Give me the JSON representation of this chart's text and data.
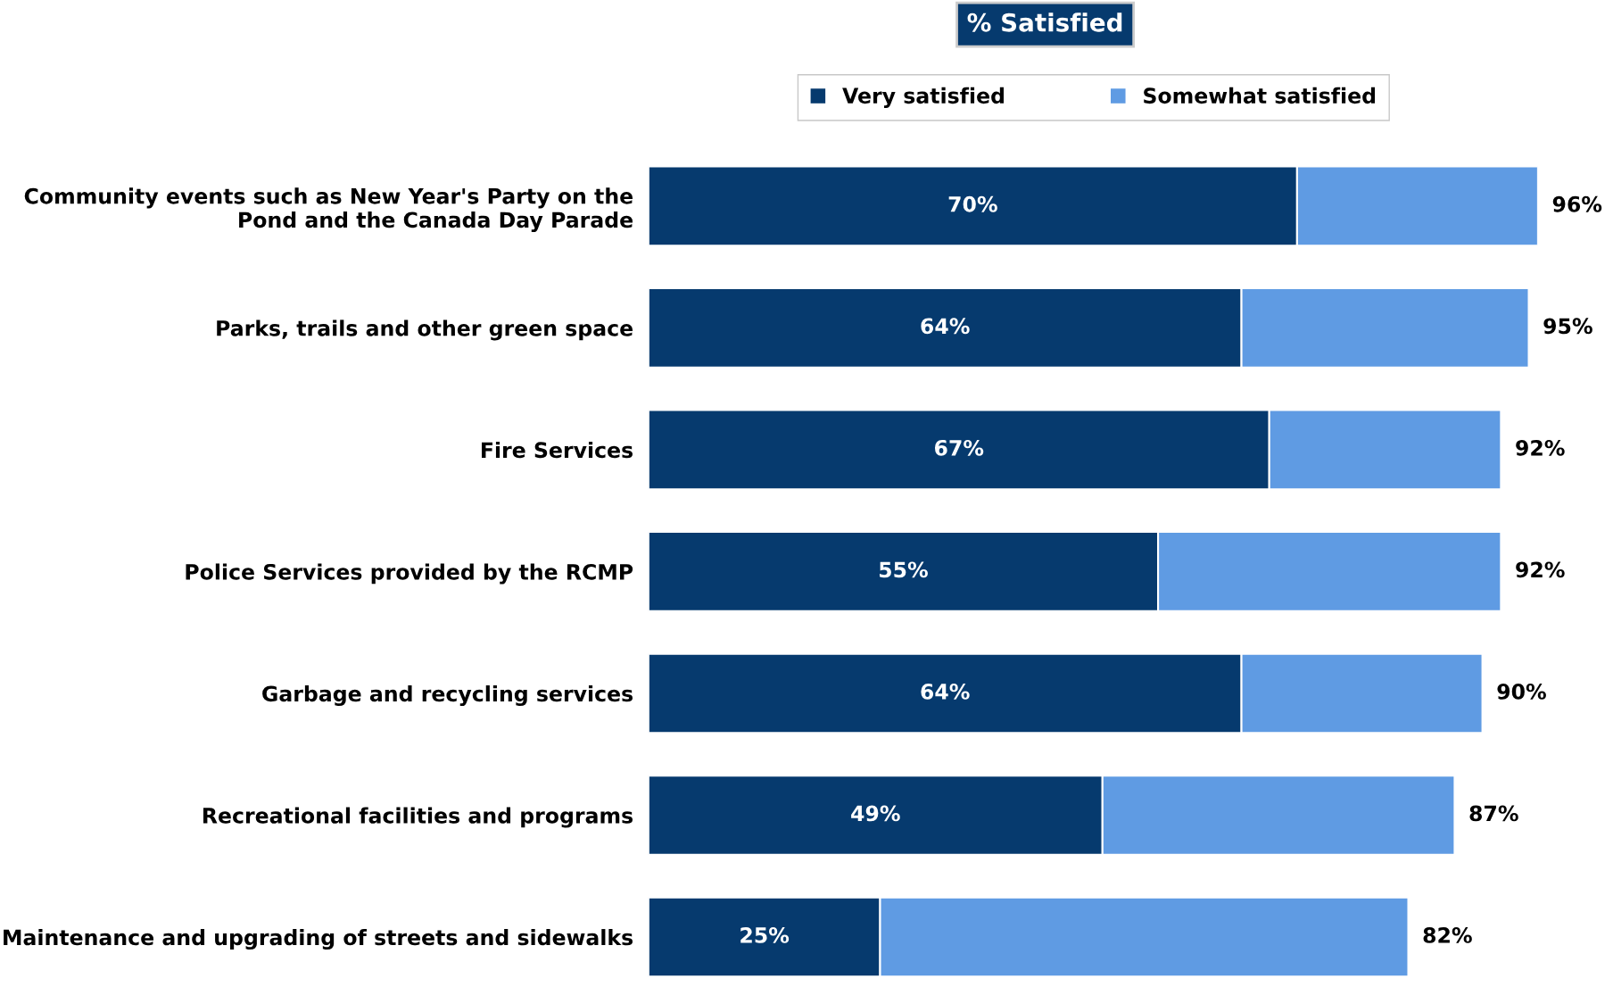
{
  "chart_data": {
    "type": "bar",
    "orientation": "horizontal",
    "stacked": true,
    "title": "% Satisfied",
    "categories": [
      "Community events such as New Year's Party on the\nPond and the Canada Day Parade",
      "Parks, trails and other green space",
      "Fire Services",
      "Police Services provided by the RCMP",
      "Garbage and recycling services",
      "Recreational facilities and programs",
      "Maintenance and upgrading of streets and sidewalks"
    ],
    "series": [
      {
        "name": "Very satisfied",
        "color": "#063a6e",
        "values": [
          70,
          64,
          67,
          55,
          64,
          49,
          25
        ],
        "value_labels": [
          "70%",
          "64%",
          "67%",
          "55%",
          "64%",
          "49%",
          "25%"
        ]
      },
      {
        "name": "Somewhat satisfied",
        "color": "#5f9be3",
        "values": [
          26,
          31,
          25,
          37,
          26,
          38,
          57
        ]
      }
    ],
    "totals": [
      "96%",
      "95%",
      "92%",
      "92%",
      "90%",
      "87%",
      "82%"
    ],
    "tick_labels": "y",
    "grid": false,
    "legend": "top"
  }
}
